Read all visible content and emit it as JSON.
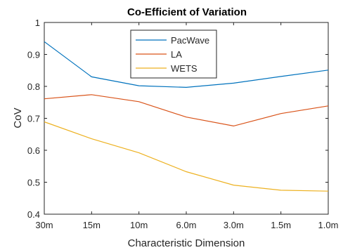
{
  "chart_data": {
    "type": "line",
    "title": "Co-Efficient of Variation",
    "xlabel": "Characteristic Dimension",
    "ylabel": "CoV",
    "categories": [
      "30m",
      "15m",
      "10m",
      "6.0m",
      "3.0m",
      "1.5m",
      "1.0m"
    ],
    "ylim": [
      0.4,
      1
    ],
    "yticks": [
      "0.4",
      "0.5",
      "0.6",
      "0.7",
      "0.8",
      "0.9",
      "1"
    ],
    "grid": false,
    "legend_position": "top-center",
    "series": [
      {
        "name": "PacWave",
        "color": "#0072BD",
        "values": [
          0.94,
          0.83,
          0.802,
          0.797,
          0.81,
          0.831,
          0.851
        ]
      },
      {
        "name": "LA",
        "color": "#D95319",
        "values": [
          0.761,
          0.774,
          0.752,
          0.704,
          0.676,
          0.715,
          0.739
        ]
      },
      {
        "name": "WETS",
        "color": "#EDB120",
        "values": [
          0.689,
          0.636,
          0.592,
          0.533,
          0.491,
          0.475,
          0.472
        ]
      }
    ]
  }
}
